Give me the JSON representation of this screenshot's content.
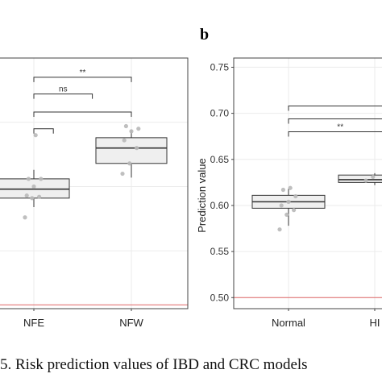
{
  "figure": {
    "panel_label": "b",
    "caption": "5. Risk prediction values of IBD and CRC models"
  },
  "colors": {
    "box_fill": "#efefef",
    "box_stroke": "#333333",
    "point": "#b8b8b8",
    "grid": "#ebebeb",
    "baseline": "#e06666"
  },
  "chart_data": [
    {
      "panel": "a",
      "type": "box",
      "title": "",
      "xlabel": "",
      "ylabel": "",
      "categories": [
        "NFE",
        "NFW"
      ],
      "boxes": [
        {
          "category": "NFE",
          "q1": 0.591,
          "median": 0.598,
          "q3": 0.606,
          "whisker_low": 0.584,
          "whisker_high": 0.613,
          "points": [
            0.576,
            0.591,
            0.592,
            0.593,
            0.6,
            0.606,
            0.606,
            0.64
          ]
        },
        {
          "category": "NFW",
          "q1": 0.618,
          "median": 0.63,
          "q3": 0.638,
          "whisker_low": 0.607,
          "whisker_high": 0.644,
          "points": [
            0.61,
            0.618,
            0.63,
            0.636,
            0.643,
            0.645,
            0.647
          ]
        }
      ],
      "ylim": [
        0.505,
        0.7
      ],
      "baseline_y": 0.508,
      "annotations": [
        "**",
        "ns"
      ],
      "brackets": [
        {
          "label": "**",
          "y": 0.685,
          "x0": 0,
          "x1": 1.0
        },
        {
          "label": "ns",
          "y": 0.672,
          "x0": 0,
          "x1": 0.6
        },
        {
          "label": "",
          "y": 0.658,
          "x0": 0,
          "x1": 1.0
        },
        {
          "label": "",
          "y": 0.645,
          "x0": 0,
          "x1": 0.2
        }
      ]
    },
    {
      "panel": "b",
      "type": "box",
      "title": "",
      "xlabel": "",
      "ylabel": "Prediction value",
      "categories": [
        "Normal",
        "HI"
      ],
      "yticks": [
        0.5,
        0.55,
        0.6,
        0.65,
        0.7,
        0.75
      ],
      "ytick_labels": [
        "0.50",
        "0.55",
        "0.60",
        "0.65",
        "0.70",
        "0.75"
      ],
      "ylim": [
        0.488,
        0.76
      ],
      "baseline_y": 0.5,
      "boxes": [
        {
          "category": "Normal",
          "q1": 0.597,
          "median": 0.604,
          "q3": 0.611,
          "whisker_low": 0.578,
          "whisker_high": 0.618,
          "points": [
            0.574,
            0.59,
            0.595,
            0.6,
            0.604,
            0.61,
            0.617,
            0.619
          ]
        },
        {
          "category": "HI",
          "q1": 0.625,
          "median": 0.628,
          "q3": 0.633,
          "whisker_low": 0.622,
          "whisker_high": 0.635,
          "points": [
            0.627,
            0.631
          ]
        }
      ],
      "annotations": [
        "**"
      ],
      "brackets": [
        {
          "label": "",
          "y": 0.708,
          "x0": 0,
          "x1": 1.2
        },
        {
          "label": "",
          "y": 0.694,
          "x0": 0,
          "x1": 1.2
        },
        {
          "label": "**",
          "y": 0.68,
          "x0": 0,
          "x1": 1.2
        }
      ]
    }
  ]
}
